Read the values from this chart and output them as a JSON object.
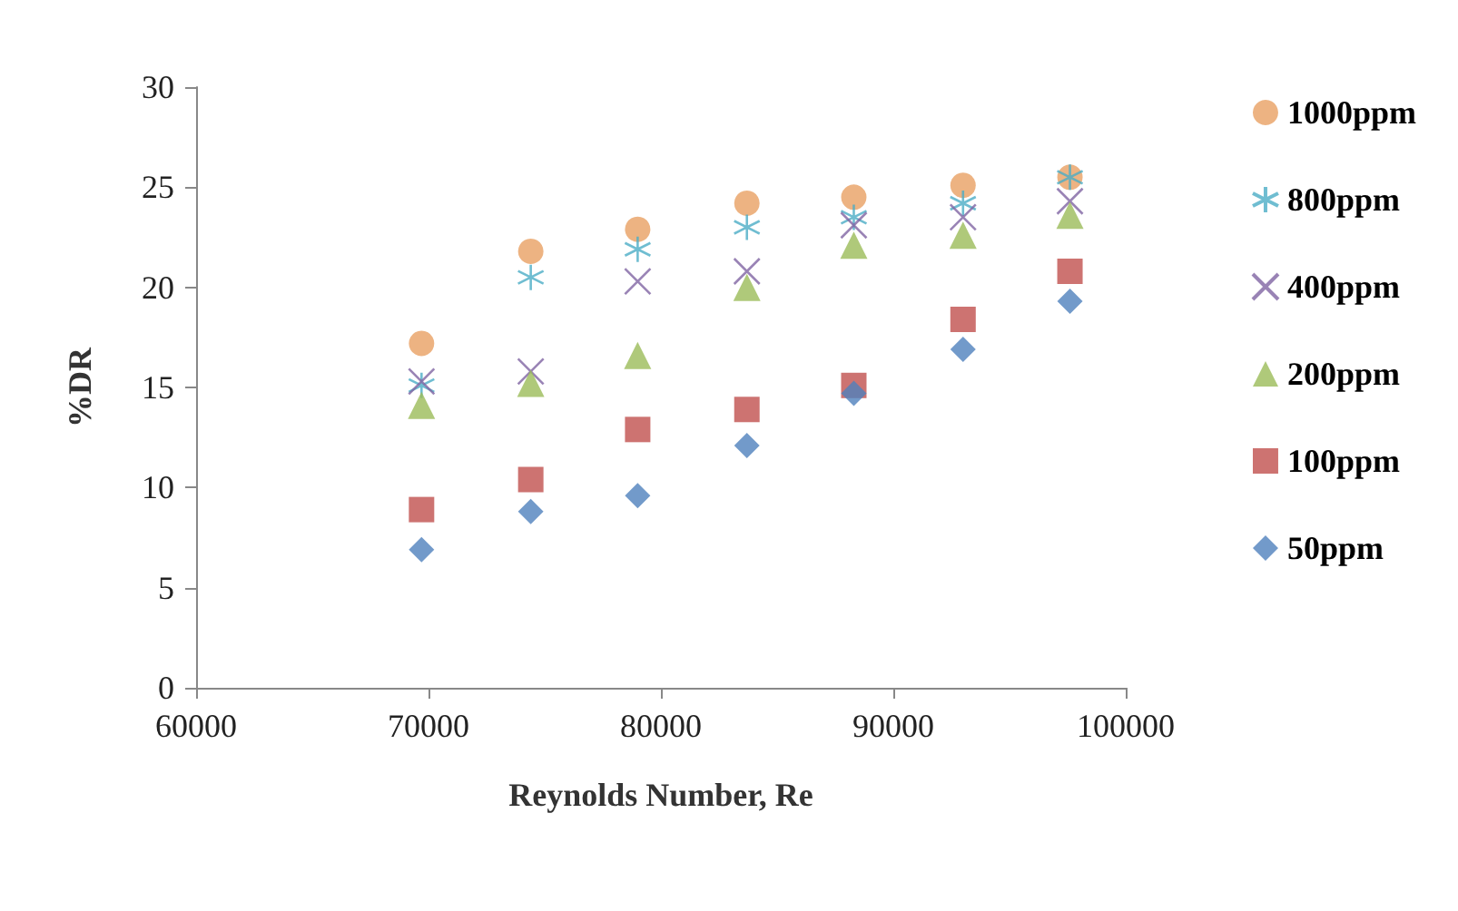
{
  "chart_data": {
    "type": "scatter",
    "xlabel": "Reynolds Number, Re",
    "ylabel": "%DR",
    "xlim": [
      60000,
      100000
    ],
    "xticks": [
      60000,
      70000,
      80000,
      90000,
      100000
    ],
    "ylim": [
      0,
      30
    ],
    "yticks": [
      0,
      5,
      10,
      15,
      20,
      25,
      30
    ],
    "grid": false,
    "legend": "right",
    "x": [
      69700,
      74400,
      79000,
      83700,
      88300,
      93000,
      97600
    ],
    "series": [
      {
        "name": "1000ppm",
        "color": "#e8a063",
        "marker": "circle",
        "values": [
          17.2,
          21.8,
          22.9,
          24.2,
          24.5,
          25.1,
          25.5
        ]
      },
      {
        "name": "800ppm",
        "color": "#4bacc6",
        "marker": "cross",
        "values": [
          15.1,
          20.5,
          21.9,
          23.0,
          23.5,
          24.2,
          25.5
        ]
      },
      {
        "name": "400ppm",
        "color": "#8064a2",
        "marker": "cross",
        "values": [
          15.3,
          15.8,
          20.3,
          20.8,
          23.1,
          23.5,
          24.3
        ]
      },
      {
        "name": "200ppm",
        "color": "#9bbb59",
        "marker": "triangle",
        "values": [
          14.1,
          15.2,
          16.6,
          20.0,
          22.1,
          22.6,
          23.6
        ]
      },
      {
        "name": "100ppm",
        "color": "#c0504d",
        "marker": "square",
        "values": [
          8.9,
          10.4,
          12.9,
          13.9,
          15.1,
          18.4,
          20.8
        ]
      },
      {
        "name": "50ppm",
        "color": "#4f81bd",
        "marker": "diamond",
        "values": [
          6.9,
          8.8,
          9.6,
          12.1,
          14.7,
          16.9,
          19.3
        ]
      }
    ]
  }
}
